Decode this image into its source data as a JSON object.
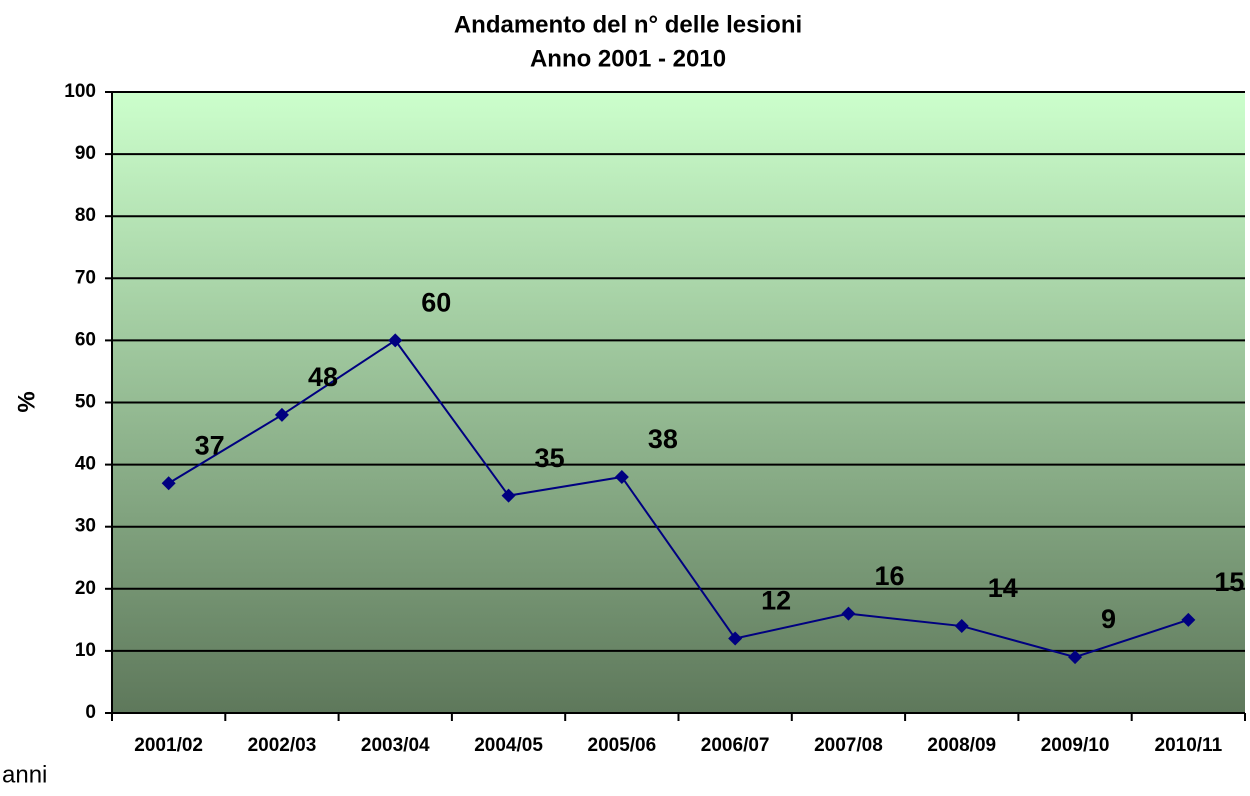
{
  "chart_data": {
    "type": "line",
    "title": "Andamento del n° delle lesioni",
    "subtitle": "Anno 2001 - 2010",
    "y_label": "%",
    "x_label": "anni",
    "categories": [
      "2001/02",
      "2002/03",
      "2003/04",
      "2004/05",
      "2005/06",
      "2006/07",
      "2007/08",
      "2008/09",
      "2009/10",
      "2010/11"
    ],
    "values": [
      37,
      48,
      60,
      35,
      38,
      12,
      16,
      14,
      9,
      15
    ],
    "color": "#000080",
    "ylim": [
      0,
      100
    ],
    "yticks": [
      0,
      10,
      20,
      30,
      40,
      50,
      60,
      70,
      80,
      90,
      100
    ],
    "grid": true
  }
}
